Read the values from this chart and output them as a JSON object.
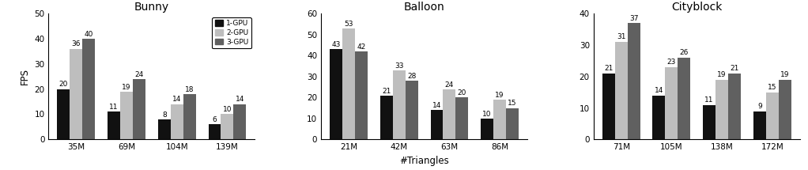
{
  "bunny": {
    "title": "Bunny",
    "categories": [
      "35M",
      "69M",
      "104M",
      "139M"
    ],
    "gpu1": [
      20,
      11,
      8,
      6
    ],
    "gpu2": [
      36,
      19,
      14,
      10
    ],
    "gpu3": [
      40,
      24,
      18,
      14
    ],
    "ylim": [
      0,
      50
    ],
    "yticks": [
      0,
      10,
      20,
      30,
      40,
      50
    ],
    "ylabel": "FPS"
  },
  "balloon": {
    "title": "Balloon",
    "categories": [
      "21M",
      "42M",
      "63M",
      "86M"
    ],
    "gpu1": [
      43,
      21,
      14,
      10
    ],
    "gpu2": [
      53,
      33,
      24,
      19
    ],
    "gpu3": [
      42,
      28,
      20,
      15
    ],
    "ylim": [
      0,
      60
    ],
    "yticks": [
      0,
      10,
      20,
      30,
      40,
      50,
      60
    ],
    "ylabel": ""
  },
  "cityblock": {
    "title": "Cityblock",
    "categories": [
      "71M",
      "105M",
      "138M",
      "172M"
    ],
    "gpu1": [
      21,
      14,
      11,
      9
    ],
    "gpu2": [
      31,
      23,
      19,
      15
    ],
    "gpu3": [
      37,
      26,
      21,
      19
    ],
    "ylim": [
      0,
      40
    ],
    "yticks": [
      0,
      10,
      20,
      30,
      40
    ],
    "ylabel": ""
  },
  "colors": {
    "gpu1": "#111111",
    "gpu2": "#bebebe",
    "gpu3": "#606060"
  },
  "legend_labels": [
    "1-GPU",
    "2-GPU",
    "3-GPU"
  ],
  "xlabel": "#Triangles",
  "bar_width": 0.25,
  "label_fontsize": 6.5,
  "title_fontsize": 10,
  "tick_fontsize": 7.5,
  "axis_label_fontsize": 8.5
}
